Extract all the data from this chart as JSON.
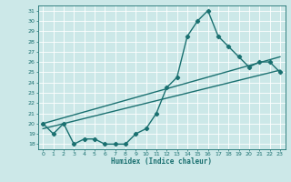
{
  "title": "",
  "xlabel": "Humidex (Indice chaleur)",
  "ylabel": "",
  "bg_color": "#cce8e8",
  "line_color": "#1a7070",
  "grid_color": "#ffffff",
  "xlim": [
    -0.5,
    23.5
  ],
  "ylim": [
    17.5,
    31.5
  ],
  "xticks": [
    0,
    1,
    2,
    3,
    4,
    5,
    6,
    7,
    8,
    9,
    10,
    11,
    12,
    13,
    14,
    15,
    16,
    17,
    18,
    19,
    20,
    21,
    22,
    23
  ],
  "yticks": [
    18,
    19,
    20,
    21,
    22,
    23,
    24,
    25,
    26,
    27,
    28,
    29,
    30,
    31
  ],
  "series1_x": [
    0,
    1,
    2,
    3,
    4,
    5,
    6,
    7,
    8,
    9,
    10,
    11,
    12,
    13,
    14,
    15,
    16,
    17,
    18,
    19,
    20,
    21,
    22,
    23
  ],
  "series1_y": [
    20,
    19,
    20,
    18,
    18.5,
    18.5,
    18,
    18,
    18,
    19,
    19.5,
    21,
    23.5,
    24.5,
    28.5,
    30,
    31,
    28.5,
    27.5,
    26.5,
    25.5,
    26,
    26,
    25
  ],
  "series2_x": [
    0,
    23
  ],
  "series2_y": [
    20,
    26.5
  ],
  "series3_x": [
    0,
    23
  ],
  "series3_y": [
    19.5,
    25.2
  ],
  "marker": "D",
  "markersize": 2.2,
  "linewidth": 1.0
}
